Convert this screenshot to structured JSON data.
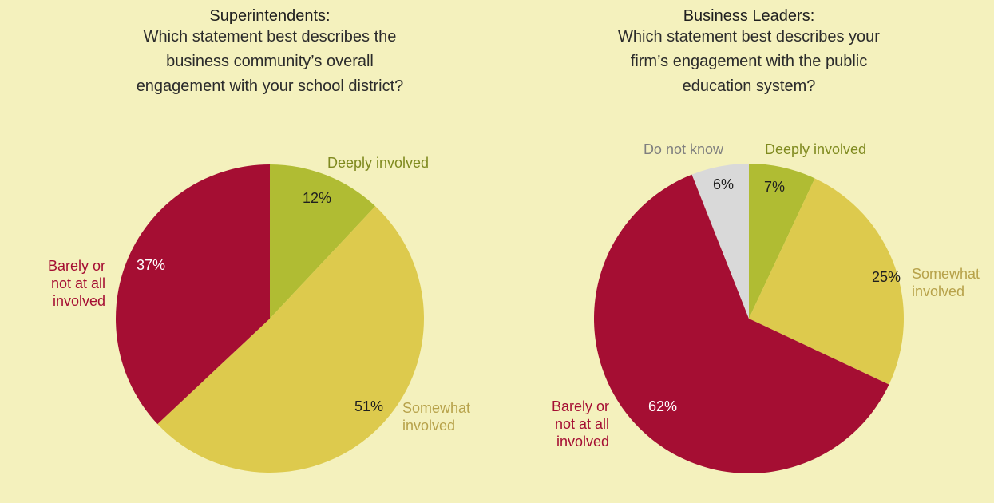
{
  "chart_data": [
    {
      "type": "pie",
      "title": "Superintendents:",
      "subtitle": [
        "Which statement best describes the",
        "business community’s overall",
        "engagement with your school district?"
      ],
      "slices": [
        {
          "label": [
            "Deeply involved"
          ],
          "value": 12,
          "display": "12%",
          "color": "#b0bc33",
          "text_color": "#7f8a1f"
        },
        {
          "label": [
            "Somewhat",
            "involved"
          ],
          "value": 51,
          "display": "51%",
          "color": "#ddca4d",
          "text_color": "#b7a24a"
        },
        {
          "label": [
            "Barely or",
            "not at all",
            "involved"
          ],
          "value": 37,
          "display": "37%",
          "color": "#a50e33",
          "text_color": "#a50e33"
        }
      ]
    },
    {
      "type": "pie",
      "title": "Business Leaders:",
      "subtitle": [
        "Which statement best describes your",
        "firm’s engagement with the public",
        "education system?"
      ],
      "slices": [
        {
          "label": [
            "Deeply involved"
          ],
          "value": 7,
          "display": "7%",
          "color": "#b0bc33",
          "text_color": "#7f8a1f"
        },
        {
          "label": [
            "Somewhat",
            "involved"
          ],
          "value": 25,
          "display": "25%",
          "color": "#ddca4d",
          "text_color": "#b7a24a"
        },
        {
          "label": [
            "Barely or",
            "not at all",
            "involved"
          ],
          "value": 62,
          "display": "62%",
          "color": "#a50e33",
          "text_color": "#a50e33"
        },
        {
          "label": [
            "Do not know"
          ],
          "value": 6,
          "display": "6%",
          "color": "#d9d9d9",
          "text_color": "#7f7f7f"
        }
      ]
    }
  ]
}
